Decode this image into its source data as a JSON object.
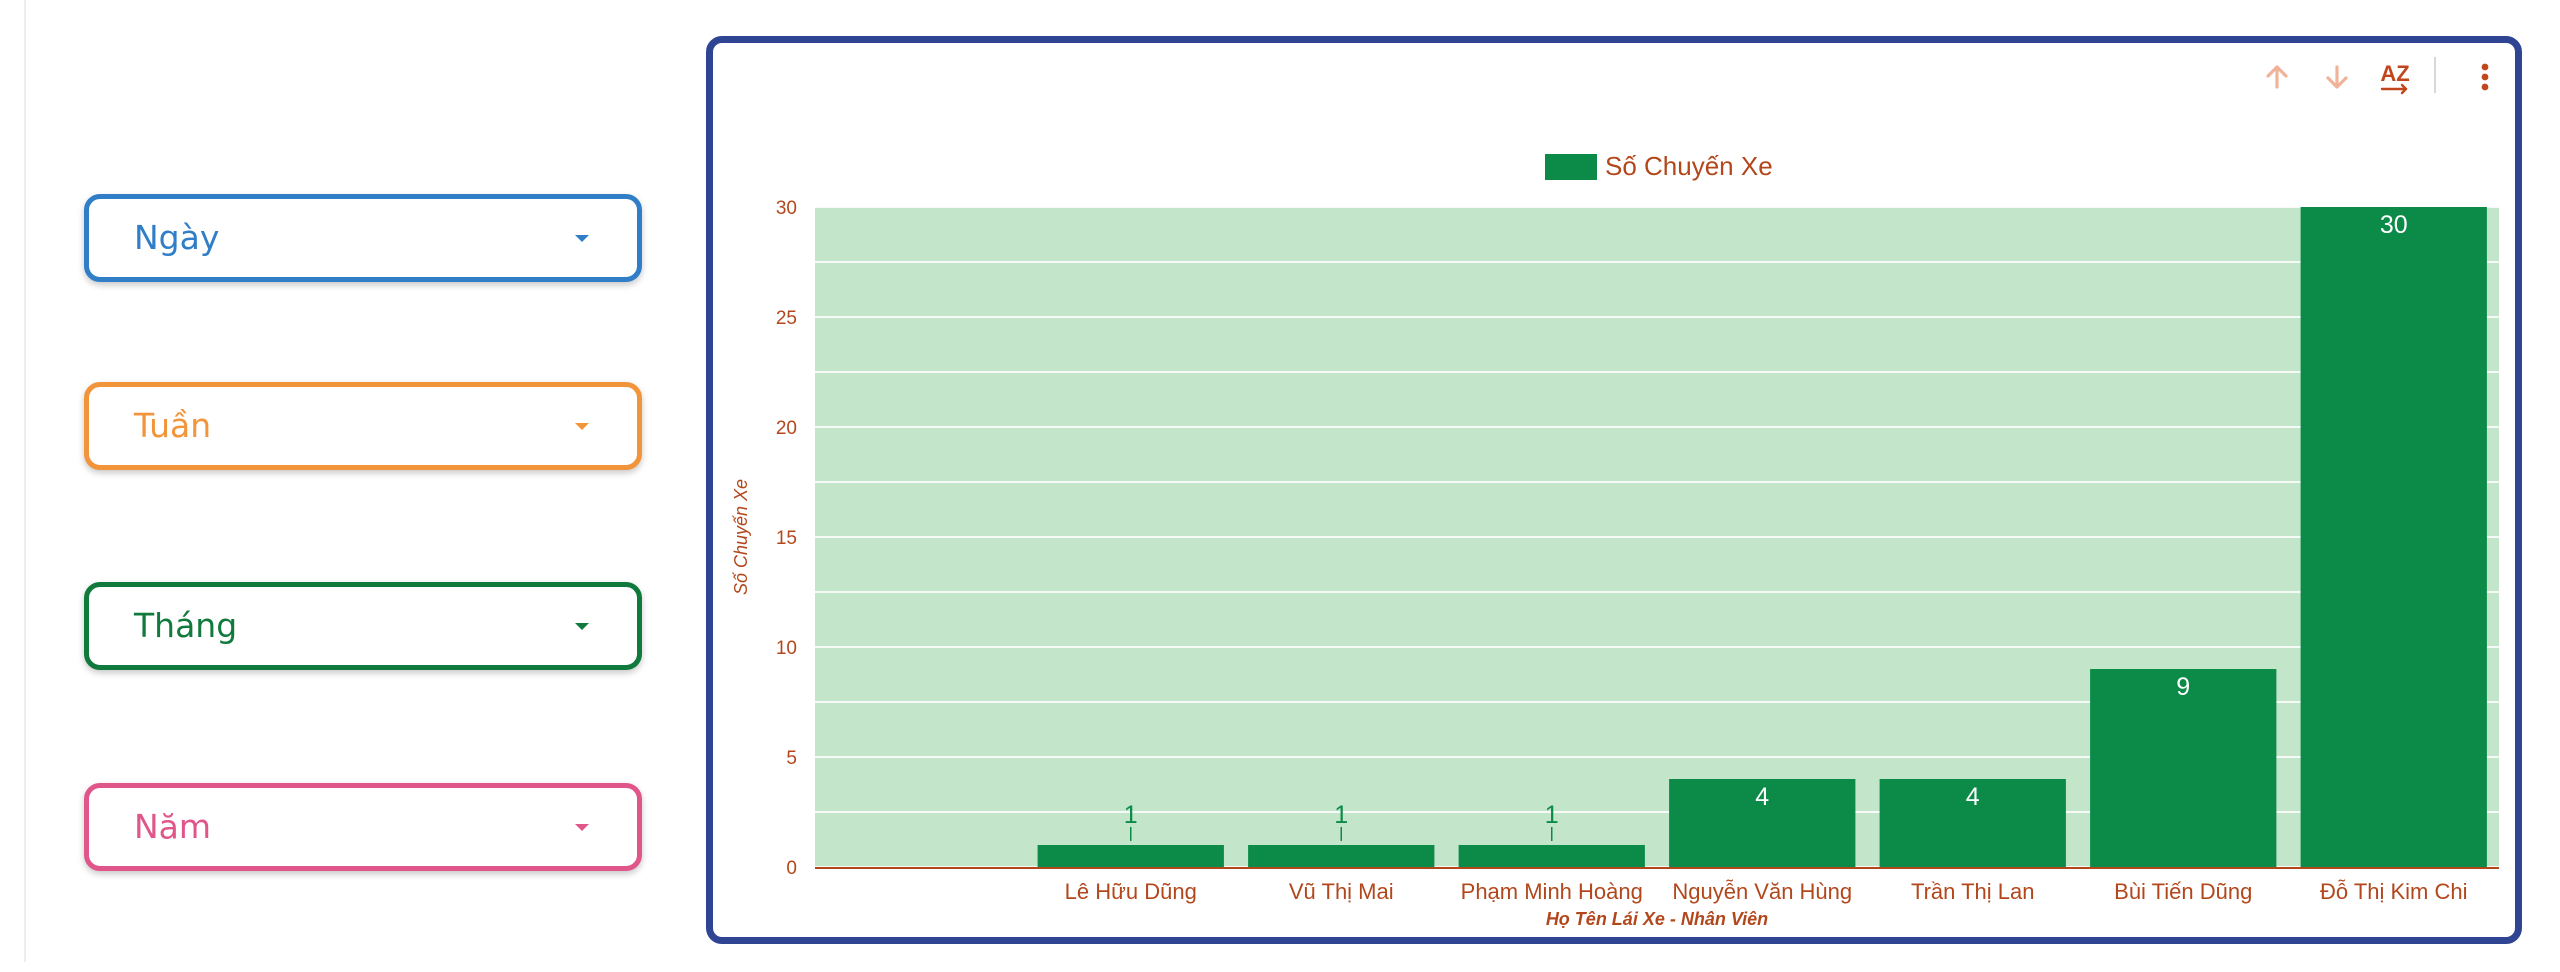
{
  "filters": [
    {
      "label": "Ngày",
      "color": "#2f7ec7"
    },
    {
      "label": "Tuần",
      "color": "#f2943a"
    },
    {
      "label": "Tháng",
      "color": "#0f7a3c"
    },
    {
      "label": "Năm",
      "color": "#e0568a"
    }
  ],
  "toolbar": {
    "icons": [
      "arrow-up-icon",
      "arrow-down-icon",
      "sort-az-icon",
      "more-vert-icon"
    ],
    "sort_label": "AZ"
  },
  "colors": {
    "bar": "#0c8a48",
    "plot_background": "#c3e6cb",
    "axis_text": "#b3471c",
    "card_border": "#2f4594",
    "toolbar_icon": "#f0b39a"
  },
  "chart_data": {
    "type": "bar",
    "title": "",
    "legend": {
      "label": "Số Chuyến Xe",
      "position": "top-center"
    },
    "xlabel": "Họ Tên Lái Xe - Nhân Viên",
    "ylabel": "Số Chuyến Xe",
    "ylim": [
      0,
      30
    ],
    "yticks": [
      0,
      5,
      10,
      15,
      20,
      25,
      30
    ],
    "grid": true,
    "categories": [
      "",
      "Lê Hữu Dũng",
      "Vũ Thị Mai",
      "Phạm Minh Hoàng",
      "Nguyễn Văn Hùng",
      "Trần Thị Lan",
      "Bùi Tiến Dũng",
      "Đỗ Thị Kim Chi"
    ],
    "series": [
      {
        "name": "Số Chuyến Xe",
        "values": [
          null,
          1,
          1,
          1,
          4,
          4,
          9,
          30
        ]
      }
    ],
    "data_labels": [
      "",
      "1",
      "1",
      "1",
      "4",
      "4",
      "9",
      "30"
    ]
  }
}
